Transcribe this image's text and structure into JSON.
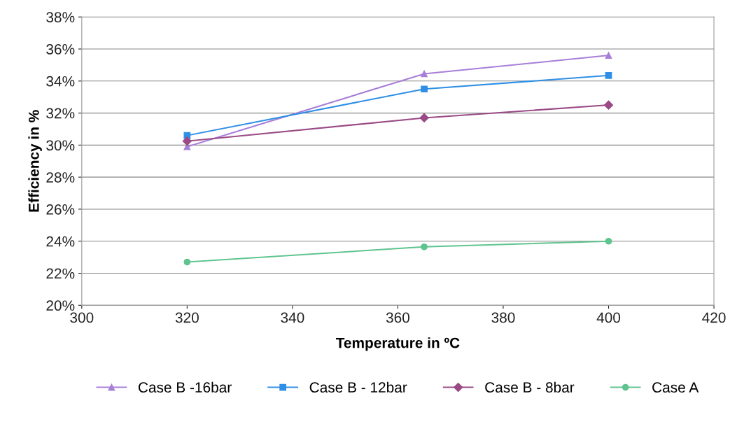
{
  "chart_data": {
    "type": "line",
    "xlabel": "Temperature in ºC",
    "ylabel": "Efficiency in %",
    "x": [
      320,
      365,
      400
    ],
    "series": [
      {
        "name": "Case B -16bar",
        "color": "#a77fd8",
        "marker": "triangle",
        "values": [
          29.9,
          34.45,
          35.6
        ]
      },
      {
        "name": "Case B - 12bar",
        "color": "#2f8fe6",
        "marker": "square",
        "values": [
          30.6,
          33.5,
          34.35
        ]
      },
      {
        "name": "Case B - 8bar",
        "color": "#9a4a86",
        "marker": "diamond",
        "values": [
          30.25,
          31.7,
          32.5
        ]
      },
      {
        "name": "Case A",
        "color": "#5fc48e",
        "marker": "circle",
        "values": [
          22.7,
          23.65,
          24.0
        ]
      }
    ],
    "xlim": [
      300,
      420
    ],
    "xticks": [
      300,
      320,
      340,
      360,
      380,
      400,
      420
    ],
    "ylim": [
      20,
      38
    ],
    "yticks": [
      {
        "value": 20,
        "label": "20%"
      },
      {
        "value": 22,
        "label": "22%"
      },
      {
        "value": 24,
        "label": "24%"
      },
      {
        "value": 26,
        "label": "26%"
      },
      {
        "value": 28,
        "label": "28%"
      },
      {
        "value": 30,
        "label": "30%"
      },
      {
        "value": 32,
        "label": "32%"
      },
      {
        "value": 34,
        "label": "34%"
      },
      {
        "value": 36,
        "label": "36%"
      },
      {
        "value": 38,
        "label": "38%"
      }
    ],
    "grid": "y",
    "legend": "bottom",
    "line_style": "solid"
  }
}
